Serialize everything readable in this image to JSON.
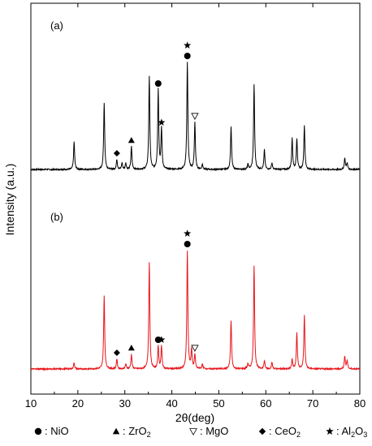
{
  "chart_data": {
    "type": "line",
    "xlabel": "2θ(deg)",
    "ylabel": "Intensity (a.u.)",
    "xlim": [
      10,
      80
    ],
    "xticks": [
      "10",
      "20",
      "30",
      "40",
      "50",
      "60",
      "70",
      "80"
    ],
    "grid": false,
    "legend_position": "bottom",
    "panels": [
      {
        "label": "(a)",
        "color": "#000000",
        "peaks": [
          {
            "x": 19.2,
            "y": 17
          },
          {
            "x": 25.6,
            "y": 41
          },
          {
            "x": 28.3,
            "y": 6
          },
          {
            "x": 29.4,
            "y": 4
          },
          {
            "x": 30.2,
            "y": 4
          },
          {
            "x": 31.4,
            "y": 14
          },
          {
            "x": 35.2,
            "y": 57
          },
          {
            "x": 37.1,
            "y": 49
          },
          {
            "x": 37.8,
            "y": 25
          },
          {
            "x": 43.3,
            "y": 66
          },
          {
            "x": 44.9,
            "y": 29
          },
          {
            "x": 46.5,
            "y": 3
          },
          {
            "x": 52.6,
            "y": 26
          },
          {
            "x": 56.2,
            "y": 3
          },
          {
            "x": 57.5,
            "y": 52
          },
          {
            "x": 59.7,
            "y": 12
          },
          {
            "x": 61.3,
            "y": 4
          },
          {
            "x": 65.6,
            "y": 19
          },
          {
            "x": 66.6,
            "y": 19
          },
          {
            "x": 68.2,
            "y": 27
          },
          {
            "x": 76.8,
            "y": 7
          },
          {
            "x": 77.3,
            "y": 4
          }
        ]
      },
      {
        "label": "(b)",
        "color": "#e8151b",
        "peaks": [
          {
            "x": 19.2,
            "y": 4
          },
          {
            "x": 25.6,
            "y": 45
          },
          {
            "x": 28.3,
            "y": 6
          },
          {
            "x": 30.2,
            "y": 3
          },
          {
            "x": 31.4,
            "y": 9
          },
          {
            "x": 35.2,
            "y": 66
          },
          {
            "x": 37.1,
            "y": 14
          },
          {
            "x": 37.8,
            "y": 14
          },
          {
            "x": 43.3,
            "y": 73
          },
          {
            "x": 44.2,
            "y": 12
          },
          {
            "x": 44.9,
            "y": 9
          },
          {
            "x": 46.5,
            "y": 3
          },
          {
            "x": 52.6,
            "y": 30
          },
          {
            "x": 56.2,
            "y": 3
          },
          {
            "x": 57.5,
            "y": 64
          },
          {
            "x": 59.7,
            "y": 5
          },
          {
            "x": 61.3,
            "y": 4
          },
          {
            "x": 65.6,
            "y": 6
          },
          {
            "x": 66.6,
            "y": 22
          },
          {
            "x": 68.2,
            "y": 33
          },
          {
            "x": 76.8,
            "y": 8
          },
          {
            "x": 77.3,
            "y": 5
          }
        ]
      }
    ],
    "annotations": [
      {
        "panel": 0,
        "x": 28.3,
        "marker": "diamond"
      },
      {
        "panel": 0,
        "x": 31.4,
        "marker": "triangle"
      },
      {
        "panel": 0,
        "x": 37.1,
        "marker": "circle"
      },
      {
        "panel": 0,
        "x": 37.8,
        "marker": "star"
      },
      {
        "panel": 0,
        "x": 43.3,
        "marker": "circle"
      },
      {
        "panel": 0,
        "x": 43.3,
        "marker": "star"
      },
      {
        "panel": 0,
        "x": 44.9,
        "marker": "open-triangle"
      },
      {
        "panel": 1,
        "x": 28.3,
        "marker": "diamond"
      },
      {
        "panel": 1,
        "x": 31.4,
        "marker": "triangle"
      },
      {
        "panel": 1,
        "x": 37.1,
        "marker": "circle"
      },
      {
        "panel": 1,
        "x": 37.8,
        "marker": "star"
      },
      {
        "panel": 1,
        "x": 43.3,
        "marker": "circle"
      },
      {
        "panel": 1,
        "x": 43.3,
        "marker": "star"
      },
      {
        "panel": 1,
        "x": 44.9,
        "marker": "open-triangle"
      }
    ],
    "legend": [
      {
        "marker": "circle",
        "text": ": NiO"
      },
      {
        "marker": "triangle",
        "text": ": ZrO",
        "sub": "2"
      },
      {
        "marker": "open-triangle",
        "text": ": MgO"
      },
      {
        "marker": "diamond",
        "text": ": CeO",
        "sub": "2"
      },
      {
        "marker": "star",
        "text": ": Al",
        "sub": "2",
        "tail": "O",
        "sub2": "3"
      }
    ]
  }
}
